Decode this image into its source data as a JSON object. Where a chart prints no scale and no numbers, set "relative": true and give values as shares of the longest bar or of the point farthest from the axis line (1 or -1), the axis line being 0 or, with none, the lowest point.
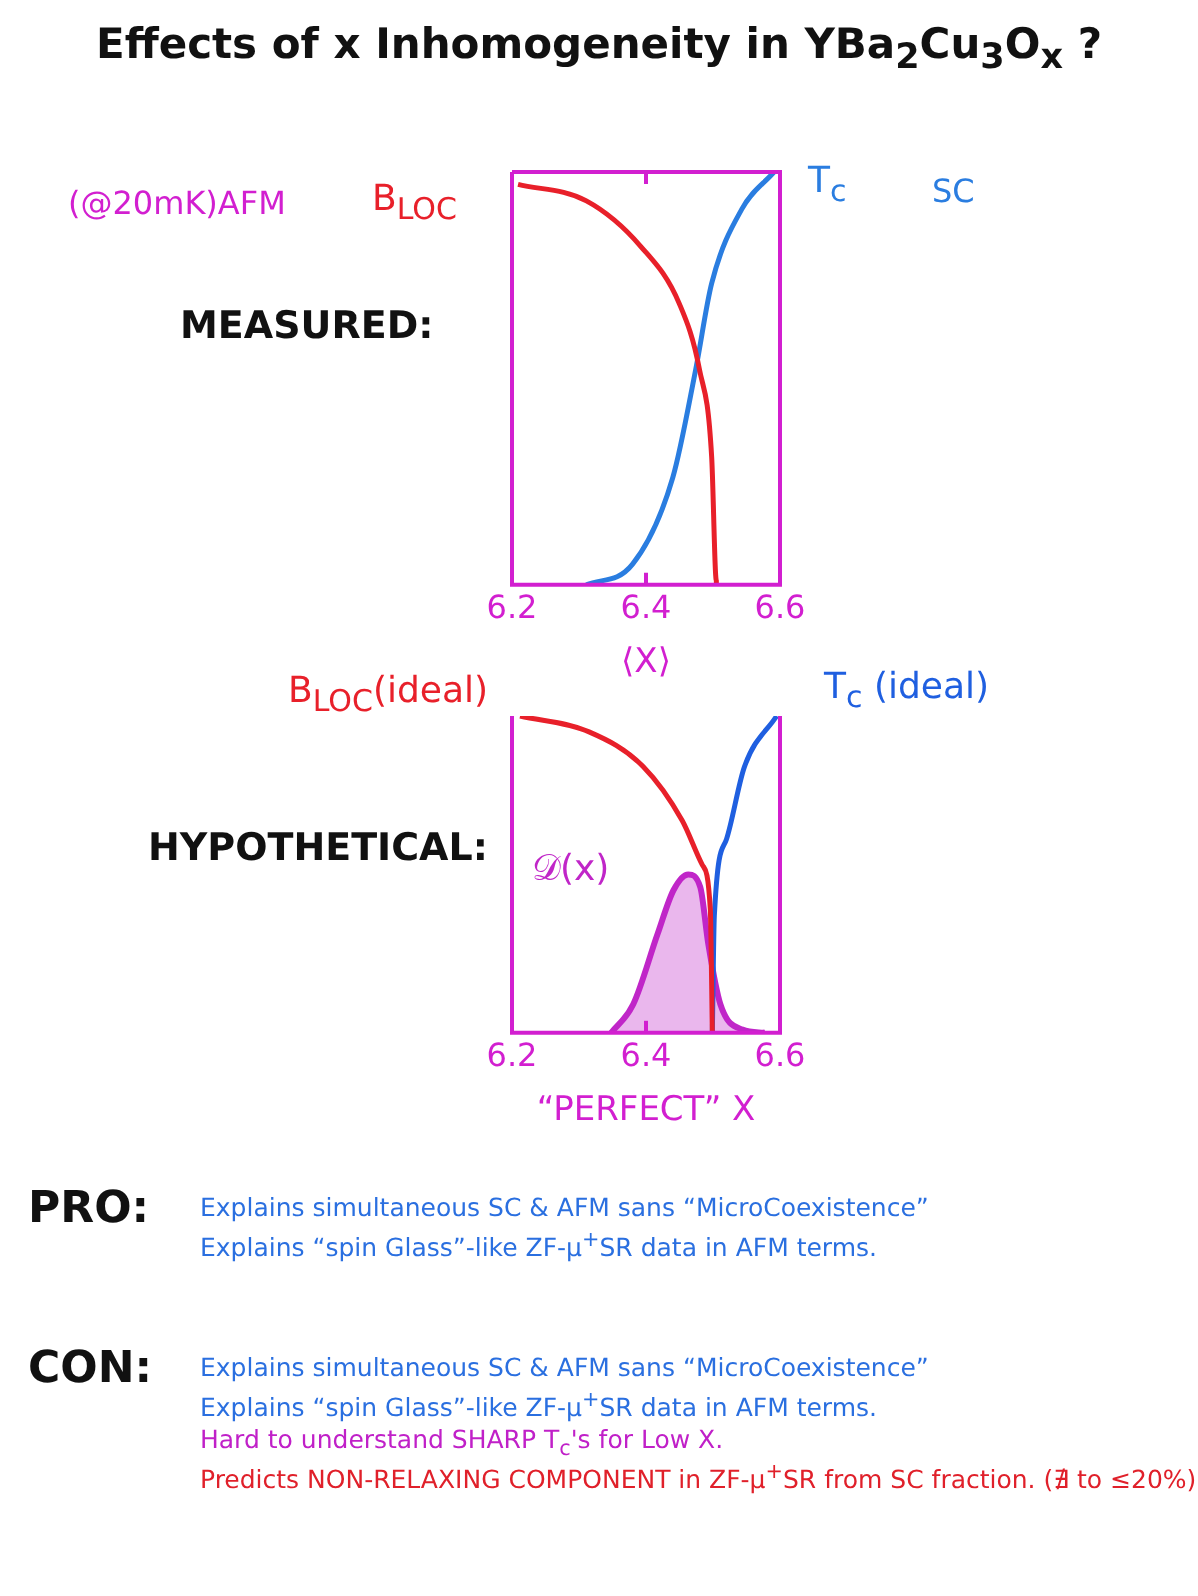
{
  "chart_data": [
    {
      "type": "line",
      "title": "Effects of x Inhomogeneity in YBa$_{2}$Cu$_{3}$O$_{x}$ ?",
      "subtitle": "MEASURED:",
      "xlabel": "⟨X⟩",
      "relative": true,
      "xlim": [
        6.2,
        6.6
      ],
      "xticks": [
        6.2,
        6.4,
        6.6
      ],
      "grid": false,
      "legend": false,
      "annotations": [
        "(@20mK)AFM",
        "SC"
      ],
      "series": [
        {
          "name": "B$_{LOC}$",
          "color": "#e8202a",
          "x": [
            6.209,
            6.311,
            6.392,
            6.45,
            6.48,
            6.498,
            6.505,
            6.505
          ],
          "values": [
            0.97,
            0.93,
            0.82,
            0.68,
            0.52,
            0.31,
            0.01,
            0
          ]
        },
        {
          "name": "T$_{c}$",
          "color": "#2a7de0",
          "x": [
            6.311,
            6.38,
            6.44,
            6.474,
            6.498,
            6.543,
            6.591
          ],
          "values": [
            0,
            0.05,
            0.26,
            0.52,
            0.73,
            0.91,
            1
          ]
        }
      ]
    },
    {
      "type": "line",
      "subtitle": "HYPOTHETICAL:",
      "xlabel": "“PERFECT” X",
      "relative": true,
      "xlim": [
        6.2,
        6.6
      ],
      "xticks": [
        6.2,
        6.4,
        6.6
      ],
      "grid": false,
      "legend": false,
      "series": [
        {
          "name": "B$_{LOC}$(ideal)",
          "color": "#e8202a",
          "x": [
            6.212,
            6.315,
            6.396,
            6.454,
            6.484,
            6.496,
            6.499
          ],
          "values": [
            1,
            0.95,
            0.84,
            0.67,
            0.53,
            0.39,
            0
          ]
        },
        {
          "name": "T$_{c}$ (ideal)",
          "color": "#1f5fe0",
          "x": [
            6.499,
            6.502,
            6.52,
            6.547,
            6.595
          ],
          "values": [
            0,
            0.37,
            0.61,
            0.84,
            1
          ]
        },
        {
          "name": "𝒟(x)",
          "type": "area",
          "color": "#c026c8",
          "x": [
            6.348,
            6.381,
            6.417,
            6.441,
            6.463,
            6.481,
            6.493,
            6.511,
            6.544,
            6.577
          ],
          "values": [
            0,
            0.09,
            0.31,
            0.45,
            0.5,
            0.46,
            0.28,
            0.09,
            0.01,
            0
          ]
        }
      ]
    },
    {
      "type": "other",
      "title": "PRO:",
      "annotations": [
        "Explains simultaneous SC & AFM sans “MicroCoexistence”",
        "Explains “spin Glass”-like ZF-μ$^{+}$SR data in AFM terms."
      ]
    },
    {
      "type": "other",
      "title": "CON:",
      "annotations": [
        "Explains simultaneous SC & AFM sans “MicroCoexistence”",
        "Explains “spin Glass”-like ZF-μ$^{+}$SR data in AFM terms.",
        "Hard to understand SHARP T$_{c}$'s for Low X.",
        "Predicts NON-RELAXING COMPONENT in ZF-μ$^{+}$SR from SC fraction. (∄ to ≤20%)"
      ]
    }
  ]
}
